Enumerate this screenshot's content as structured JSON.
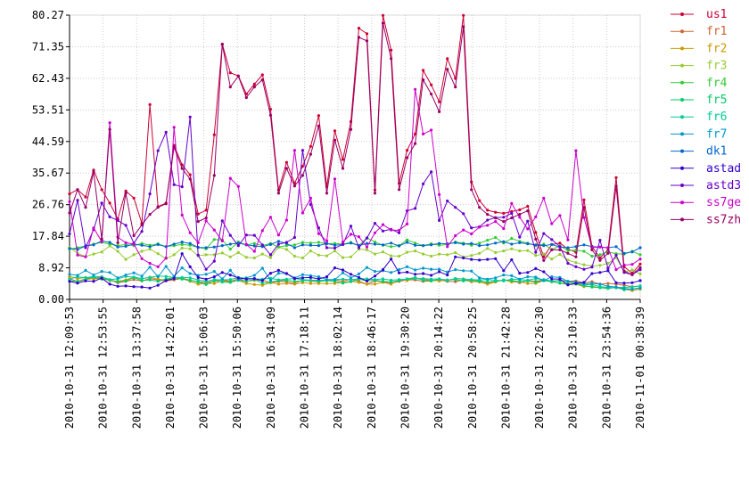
{
  "chart_data": {
    "type": "line",
    "title": "",
    "xlabel": "",
    "ylabel": "",
    "ylim": [
      0,
      80.27
    ],
    "grid": true,
    "legend_position": "right",
    "yticks": [
      "0.00",
      "8.92",
      "17.84",
      "26.76",
      "35.67",
      "44.59",
      "53.51",
      "62.43",
      "71.35",
      "80.27"
    ],
    "xticks": [
      "2010-10-31 12:09:53",
      "2010-10-31 12:53:55",
      "2010-10-31 13:37:58",
      "2010-10-31 14:22:01",
      "2010-10-31 15:06:03",
      "2010-10-31 15:50:06",
      "2010-10-31 16:34:09",
      "2010-10-31 17:18:11",
      "2010-10-31 18:02:14",
      "2010-10-31 18:46:17",
      "2010-10-31 19:30:20",
      "2010-10-31 20:14:22",
      "2010-10-31 20:58:25",
      "2010-10-31 21:42:28",
      "2010-10-31 22:26:30",
      "2010-10-31 23:10:33",
      "2010-10-31 23:54:36",
      "2010-11-01 00:38:39"
    ],
    "x_start": "2010-10-31 12:09:53",
    "x_end": "2010-11-01 00:38:39",
    "series": [
      {
        "name": "us1",
        "color": "#cc0033",
        "values": [
          29.8,
          31,
          28.9,
          36.5,
          31,
          27.2,
          22.7,
          30.6,
          28.6,
          21.5,
          55,
          26.2,
          27.2,
          43.5,
          38,
          35.2,
          24.1,
          25.2,
          46.5,
          72.1,
          64,
          63.1,
          58,
          60.8,
          63.4,
          53.7,
          30.9,
          38.7,
          32.8,
          37.6,
          43.2,
          51.9,
          31.8,
          47.6,
          39.5,
          50.2,
          76.6,
          75,
          30.9,
          80.2,
          70.4,
          32.8,
          42.1,
          46.7,
          64.7,
          60.6,
          55.8,
          68,
          62.4,
          80.2,
          33.2,
          27.9,
          25.2,
          24.6,
          24.3,
          24.8,
          25.3,
          26.3,
          18.9,
          12,
          15.5,
          15.9,
          14.2,
          13.3,
          28.1,
          15,
          11.7,
          14,
          34.4,
          9.2,
          7.4,
          10
        ]
      },
      {
        "name": "fr1",
        "color": "#cc6633",
        "values": [
          5.9,
          5,
          5.6,
          6,
          6.3,
          5.5,
          4.7,
          5.1,
          5.6,
          5.2,
          5.9,
          5.5,
          5.2,
          5.5,
          6,
          5.4,
          5,
          4.7,
          5.2,
          5.5,
          5.1,
          5.8,
          5.1,
          5.4,
          5.5,
          4.7,
          5.1,
          5,
          4.5,
          5.5,
          5.2,
          5,
          5.4,
          5.5,
          5.1,
          5.8,
          5.1,
          4.3,
          5.2,
          5,
          4.5,
          5.1,
          5.5,
          5.5,
          5.1,
          5.2,
          5.5,
          5.1,
          5,
          5.5,
          5,
          5.4,
          4.5,
          5,
          5.5,
          5.2,
          4.7,
          5.3,
          5.1,
          5.5,
          5,
          5.4,
          5.1,
          5.2,
          4.7,
          5,
          4.3,
          4.5,
          4.3,
          4,
          3.6,
          3.8
        ]
      },
      {
        "name": "fr2",
        "color": "#cc9900",
        "values": [
          6.5,
          5.9,
          6.2,
          5.8,
          6,
          5.3,
          5.1,
          5.5,
          6.3,
          5.8,
          6.3,
          5.7,
          5.4,
          6.2,
          5.9,
          5.1,
          4.3,
          4.5,
          4.5,
          5.2,
          4.9,
          5.4,
          4.5,
          4.2,
          4,
          4.7,
          4.3,
          4.5,
          4.3,
          4.7,
          4.5,
          4.5,
          4.5,
          4.5,
          4.8,
          5.1,
          4.8,
          4.3,
          4.3,
          4.8,
          4.3,
          5.5,
          5.3,
          5.9,
          5.7,
          5.4,
          5.2,
          5.4,
          5.9,
          5.7,
          5.1,
          4.9,
          4.3,
          4.9,
          5.5,
          4.9,
          5,
          4.5,
          4.5,
          5.3,
          5,
          4.6,
          4.5,
          4.3,
          3.6,
          3.7,
          3.3,
          3.3,
          3.3,
          2.9,
          2.5,
          2.9
        ]
      },
      {
        "name": "fr3",
        "color": "#99cc33",
        "values": [
          14.7,
          13,
          12.1,
          12.8,
          13.4,
          15.1,
          13.6,
          11.3,
          12.6,
          13.6,
          14.2,
          12.9,
          11.5,
          12.6,
          14.5,
          14.3,
          12.3,
          12.6,
          12.6,
          13.1,
          12,
          13.2,
          11.9,
          11.7,
          12.8,
          11.8,
          14.8,
          14.1,
          12.2,
          11.7,
          13.7,
          12.5,
          12.3,
          13.7,
          11.8,
          12,
          14.2,
          14,
          12.8,
          13.4,
          12.3,
          12.2,
          13.3,
          13.7,
          12.8,
          12.2,
          12.8,
          12.6,
          13.2,
          12,
          12.4,
          13,
          14.4,
          13.2,
          13.7,
          14.3,
          13.7,
          13.8,
          12.4,
          12.8,
          11.4,
          12.7,
          11.1,
          10.4,
          9.8,
          9.4,
          9.6,
          10.2,
          11.8,
          7.8,
          8.3,
          7.2
        ]
      },
      {
        "name": "fr4",
        "color": "#33cc33",
        "values": [
          14.2,
          14.6,
          15.1,
          15.6,
          16.1,
          15.6,
          15.2,
          15.5,
          15.2,
          15.8,
          15.3,
          15.7,
          14.9,
          15.2,
          15.5,
          15.3,
          14.7,
          14.3,
          16.9,
          16.8,
          14.2,
          16.2,
          15.4,
          15.8,
          15.2,
          15.8,
          14.8,
          15.2,
          15.4,
          16.1,
          15.9,
          16.1,
          15.7,
          15.8,
          15.6,
          16.1,
          15.2,
          17.4,
          16.2,
          15.3,
          14.9,
          15.2,
          16.8,
          15.9,
          15.2,
          15.7,
          15.3,
          15.5,
          16.2,
          15.9,
          15.3,
          15.9,
          16.7,
          17.5,
          15.9,
          17.2,
          16.4,
          15.9,
          15.2,
          15.6,
          14.1,
          15.1,
          13.8,
          13.9,
          13.6,
          12.2,
          12.6,
          13.4,
          12.9,
          12.8,
          13.6,
          12.6
        ]
      },
      {
        "name": "fr5",
        "color": "#00cc66",
        "values": [
          5.2,
          5.1,
          5.8,
          6.3,
          5.7,
          5.5,
          4.9,
          5.2,
          6.2,
          5.3,
          5.5,
          5.1,
          5.8,
          6.1,
          5.7,
          5.4,
          4.9,
          4.2,
          5.3,
          4.9,
          4.8,
          5.4,
          5.1,
          5.6,
          4.6,
          4.9,
          5.3,
          5.4,
          5.1,
          5.2,
          5.4,
          5.1,
          5.3,
          5.1,
          4.6,
          5,
          5.7,
          5.2,
          5.4,
          5.1,
          4.9,
          5.3,
          5.8,
          6.2,
          5.4,
          5.2,
          5.7,
          5.5,
          5.6,
          5.2,
          5.4,
          5.1,
          4.9,
          5.1,
          5.5,
          5.3,
          5,
          5.2,
          4.9,
          5.3,
          5,
          4.6,
          4.2,
          4.4,
          3.9,
          3.5,
          3.3,
          3.1,
          3.4,
          2.7,
          2.9,
          3.3
        ]
      },
      {
        "name": "fr6",
        "color": "#00cc99",
        "values": [
          5.8,
          6.4,
          6.1,
          6.5,
          6.4,
          5.6,
          5.8,
          6.5,
          6.3,
          5.9,
          6.2,
          6.6,
          6.5,
          6.2,
          6.2,
          6.1,
          5.5,
          5.1,
          5.6,
          5.5,
          5.6,
          6.2,
          6,
          5.8,
          5.7,
          6,
          5.5,
          5.7,
          5.9,
          5.6,
          5.4,
          5.4,
          5.4,
          5.6,
          5.7,
          5.5,
          5.9,
          5.8,
          5.6,
          5.8,
          5.4,
          5.6,
          5.7,
          5.9,
          5.9,
          5.7,
          5.8,
          5.3,
          5.9,
          5.8,
          5.6,
          5.5,
          5.6,
          5.4,
          5.2,
          5.7,
          5.6,
          5.4,
          5.9,
          5.6,
          5.2,
          5.2,
          5,
          4.5,
          4.1,
          4.2,
          3.6,
          3.4,
          3.3,
          3.4,
          3.5,
          3.8
        ]
      },
      {
        "name": "fr7",
        "color": "#0099cc",
        "values": [
          7.1,
          6.8,
          8.2,
          6.9,
          7.9,
          7.6,
          6.1,
          6.9,
          7.5,
          6.6,
          9.1,
          6.4,
          9.3,
          6.5,
          8.9,
          7.3,
          6.8,
          7.1,
          7.9,
          5.8,
          8.2,
          5.6,
          6.1,
          6.8,
          8.8,
          5.4,
          7.4,
          7.3,
          6.1,
          7,
          6.7,
          6.4,
          5.6,
          5.6,
          7.5,
          6.1,
          7.2,
          9,
          7.9,
          8.1,
          7.6,
          8.4,
          9.2,
          8.3,
          8.8,
          8.5,
          8.5,
          7.7,
          8.4,
          8.1,
          8,
          6.1,
          5.7,
          6.1,
          6.9,
          6.7,
          5.7,
          6.4,
          6.3,
          5.3,
          6.4,
          6.2,
          5.1,
          4.9,
          4.4,
          4.5,
          4.3,
          3.7,
          3.5,
          3.1,
          2.9,
          3.2
        ]
      },
      {
        "name": "dk1",
        "color": "#0066cc",
        "values": [
          14.4,
          14.1,
          15.1,
          15.4,
          16.5,
          16.1,
          14.8,
          15,
          15.6,
          15.3,
          14.9,
          15.5,
          14.9,
          15.6,
          16.2,
          15.8,
          14.7,
          14.6,
          14.8,
          15.2,
          15.6,
          15.9,
          15.4,
          15.1,
          14.9,
          15.5,
          16.4,
          15.8,
          14.6,
          15.4,
          15.3,
          15.2,
          15.8,
          15.3,
          15.5,
          15.9,
          15.2,
          15.8,
          15.6,
          15.4,
          15.9,
          15.1,
          16.1,
          15.3,
          15.2,
          15.4,
          15.8,
          15.7,
          16,
          15.6,
          15.8,
          15.2,
          15.4,
          15.9,
          16.3,
          15.6,
          16,
          15.7,
          15.4,
          15.2,
          15.5,
          14.8,
          14.6,
          14.9,
          15.4,
          14.9,
          14.8,
          14.6,
          14.9,
          13,
          13.4,
          14.6
        ]
      },
      {
        "name": "astad",
        "color": "#3300cc",
        "values": [
          5.1,
          4.6,
          5.2,
          5.1,
          6,
          4.3,
          3.7,
          3.8,
          3.6,
          3.5,
          3.2,
          4,
          5.3,
          5.9,
          12.9,
          9.2,
          6.2,
          5.7,
          6.4,
          7.6,
          6.9,
          6.1,
          5.7,
          5.9,
          5.3,
          7.4,
          8.2,
          7.3,
          5.9,
          6.1,
          6.2,
          5.8,
          6.4,
          8.9,
          8.3,
          7.1,
          6.2,
          5.2,
          6.6,
          8.4,
          11.4,
          7.5,
          7.7,
          7.1,
          7.3,
          6.8,
          7.8,
          6.9,
          12,
          11.7,
          11.3,
          11.1,
          11.3,
          11.5,
          8.1,
          11.2,
          7.4,
          7.6,
          8.7,
          7.8,
          5.8,
          5.7,
          4.1,
          4.5,
          4.8,
          7.3,
          7.6,
          8.1,
          4.7,
          4.6,
          4.7,
          5.3
        ]
      },
      {
        "name": "astd3",
        "color": "#6600cc",
        "values": [
          18.5,
          28,
          14.6,
          19.7,
          27.2,
          23.3,
          22.3,
          20.9,
          15.9,
          19.2,
          29.8,
          42,
          47.2,
          32.4,
          31.8,
          51.5,
          12.5,
          8.5,
          10.8,
          22.2,
          18.1,
          15.2,
          18.2,
          18.1,
          15.4,
          12.6,
          15.6,
          16.1,
          17.5,
          42.1,
          26.8,
          20.2,
          14.6,
          14.5,
          15.5,
          20.7,
          14.6,
          17.3,
          21.5,
          19.3,
          19.8,
          18.8,
          25,
          25.7,
          32.6,
          36,
          22.3,
          27.8,
          26,
          24.2,
          20.2,
          20.5,
          22.4,
          23.1,
          23.2,
          24.3,
          17.6,
          22.1,
          13.3,
          18.6,
          16.9,
          14.9,
          10.2,
          9.2,
          8.5,
          9.1,
          16.7,
          8.8,
          12.5,
          7.6,
          7,
          8.4
        ]
      },
      {
        "name": "ss7ge",
        "color": "#cc00cc",
        "values": [
          27.6,
          12.5,
          12,
          20.2,
          16.3,
          49.9,
          17.6,
          16,
          15.6,
          11.5,
          10.2,
          9.2,
          11.7,
          48.6,
          23.8,
          18.8,
          16,
          22.2,
          19.6,
          16.5,
          34.2,
          31.9,
          15.5,
          13.6,
          19.4,
          23.2,
          18.2,
          22.4,
          42.1,
          24.4,
          28.6,
          18.6,
          16.5,
          34,
          16.2,
          18.4,
          17.7,
          14.8,
          18.8,
          21.1,
          19.6,
          19.5,
          21.3,
          59.3,
          46.7,
          47.8,
          29.6,
          14.9,
          18,
          19.6,
          18.5,
          20.4,
          20.9,
          22,
          20,
          27.1,
          23.2,
          19.9,
          23.3,
          28.6,
          21.4,
          23.7,
          16.8,
          42,
          23.1,
          14.7,
          14.8,
          14.6,
          8.4,
          9.7,
          9.9,
          11.4
        ]
      },
      {
        "name": "ss7zh",
        "color": "#990066",
        "values": [
          24.4,
          31,
          26,
          36,
          17,
          48,
          16,
          30,
          18,
          21,
          24,
          26,
          27,
          43,
          37,
          34,
          22,
          23,
          35,
          72,
          60,
          63,
          57,
          60,
          62,
          52,
          30,
          37,
          32,
          35,
          41,
          49,
          30,
          45,
          37,
          48,
          74,
          73,
          30,
          78,
          68,
          31,
          40,
          44,
          62,
          58,
          53,
          65,
          60,
          77,
          31,
          26,
          24,
          23,
          22,
          23,
          24,
          25,
          17,
          11,
          14,
          14,
          13,
          12,
          26,
          14,
          11,
          13,
          32,
          8,
          7,
          9
        ]
      }
    ]
  }
}
